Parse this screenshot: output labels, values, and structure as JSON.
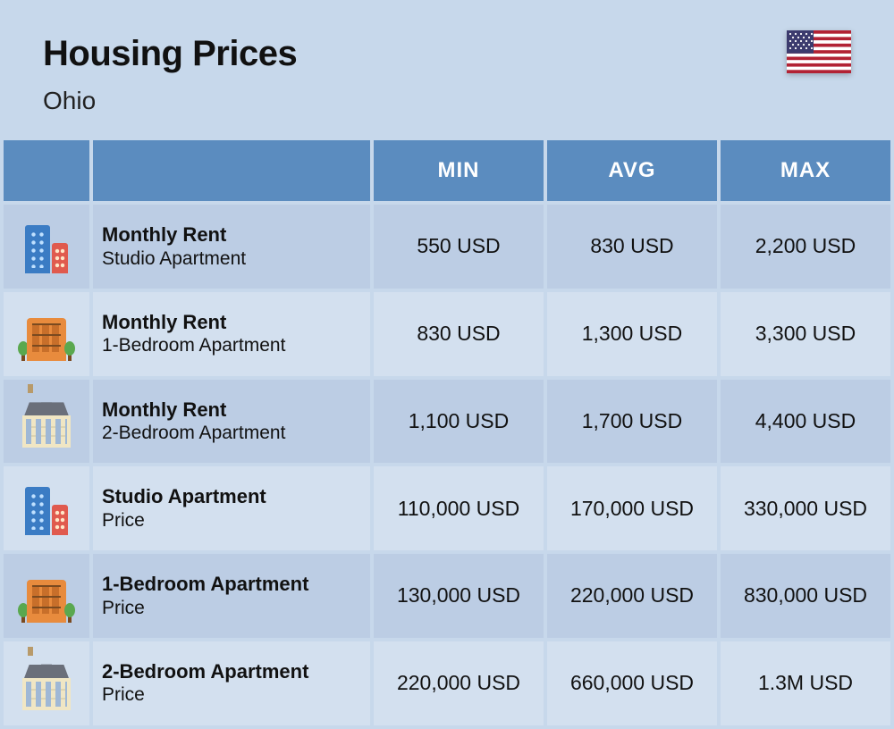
{
  "header": {
    "title": "Housing Prices",
    "subtitle": "Ohio",
    "flag": "us"
  },
  "table": {
    "columns": [
      "MIN",
      "AVG",
      "MAX"
    ],
    "rows": [
      {
        "icon": "highrise",
        "title": "Monthly Rent",
        "sub": "Studio Apartment",
        "min": "550 USD",
        "avg": "830 USD",
        "max": "2,200 USD"
      },
      {
        "icon": "brick",
        "title": "Monthly Rent",
        "sub": "1-Bedroom Apartment",
        "min": "830 USD",
        "avg": "1,300 USD",
        "max": "3,300 USD"
      },
      {
        "icon": "house",
        "title": "Monthly Rent",
        "sub": "2-Bedroom Apartment",
        "min": "1,100 USD",
        "avg": "1,700 USD",
        "max": "4,400 USD"
      },
      {
        "icon": "highrise",
        "title": "Studio Apartment",
        "sub": "Price",
        "min": "110,000 USD",
        "avg": "170,000 USD",
        "max": "330,000 USD"
      },
      {
        "icon": "brick",
        "title": "1-Bedroom Apartment",
        "sub": "Price",
        "min": "130,000 USD",
        "avg": "220,000 USD",
        "max": "830,000 USD"
      },
      {
        "icon": "house",
        "title": "2-Bedroom Apartment",
        "sub": "Price",
        "min": "220,000 USD",
        "avg": "660,000 USD",
        "max": "1.3M USD"
      }
    ]
  },
  "colors": {
    "page_bg": "#c7d8eb",
    "header_bg": "#5b8cbf",
    "row_bg": "#bccde4",
    "row_alt_bg": "#d3e0ef"
  }
}
